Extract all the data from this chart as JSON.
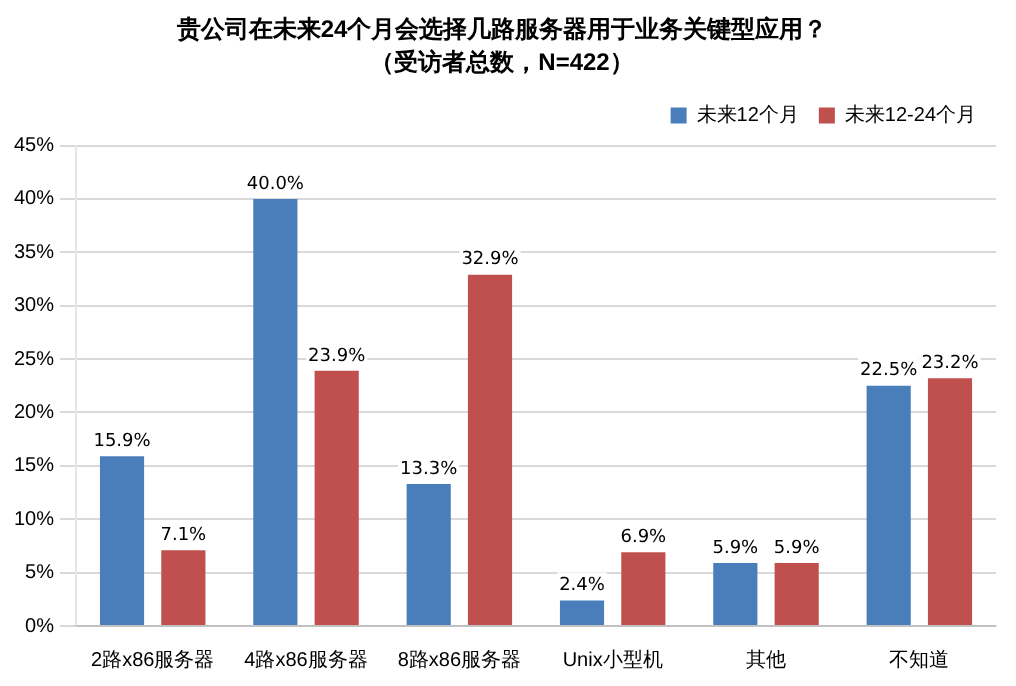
{
  "chart_data": {
    "type": "bar",
    "title": "贵公司在未来24个月会选择几路服务器用于业务关键型应用？",
    "subtitle": "（受访者总数，N=422）",
    "categories": [
      "2路x86服务器",
      "4路x86服务器",
      "8路x86服务器",
      "Unix小型机",
      "其他",
      "不知道"
    ],
    "series": [
      {
        "name": "未来12个月",
        "color": "#4a7ebb",
        "values": [
          15.9,
          40.0,
          13.3,
          2.4,
          5.9,
          22.5
        ],
        "value_labels": [
          "15.9%",
          "40.0%",
          "13.3%",
          "2.4%",
          "5.9%",
          "22.5%"
        ]
      },
      {
        "name": "未来12-24个月",
        "color": "#c0504d",
        "values": [
          7.1,
          23.9,
          32.9,
          6.9,
          5.9,
          23.2
        ],
        "value_labels": [
          "7.1%",
          "23.9%",
          "32.9%",
          "6.9%",
          "5.9%",
          "23.2%"
        ]
      }
    ],
    "ylim": [
      0,
      45
    ],
    "yticks": [
      {
        "value": 0,
        "label": "0%"
      },
      {
        "value": 5,
        "label": "5%"
      },
      {
        "value": 10,
        "label": "10%"
      },
      {
        "value": 15,
        "label": "15%"
      },
      {
        "value": 20,
        "label": "20%"
      },
      {
        "value": 25,
        "label": "25%"
      },
      {
        "value": 30,
        "label": "30%"
      },
      {
        "value": 35,
        "label": "35%"
      },
      {
        "value": 40,
        "label": "40%"
      },
      {
        "value": 45,
        "label": "45%"
      }
    ],
    "grid": "y",
    "legend": "top right"
  }
}
